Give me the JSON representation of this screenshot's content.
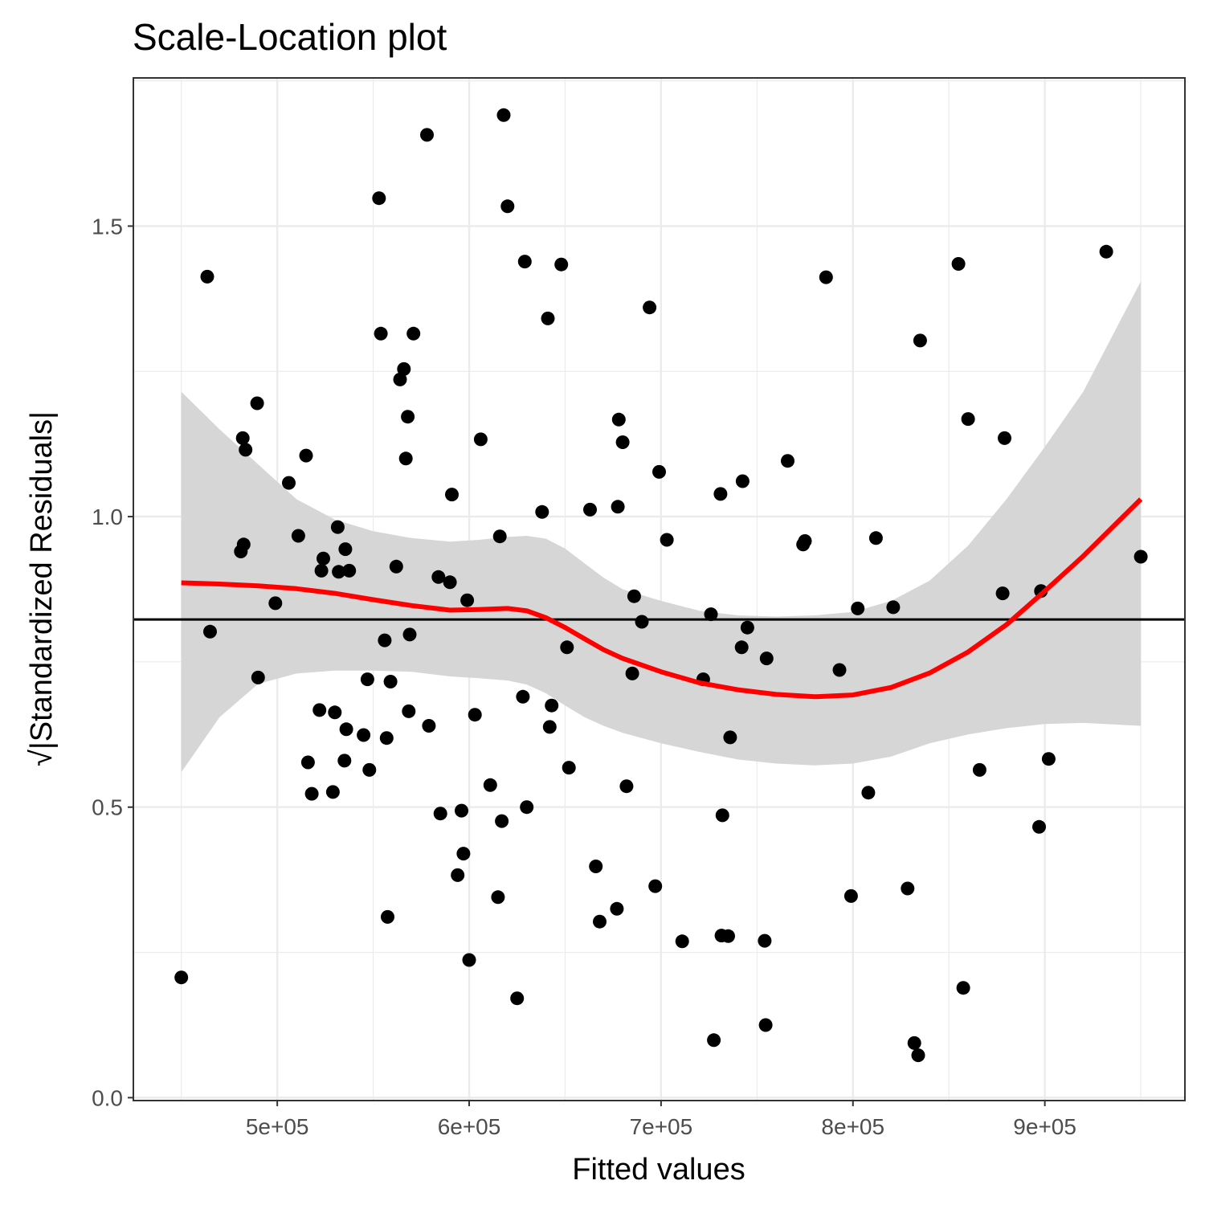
{
  "chart_data": {
    "type": "scatter",
    "title": "Scale-Location plot",
    "xlabel": "Fitted values",
    "ylabel": "√|Standardized Residuals|",
    "xlim": [
      425000,
      973000
    ],
    "ylim": [
      -0.005,
      1.755
    ],
    "x_ticks": [
      500000,
      600000,
      700000,
      800000,
      900000
    ],
    "x_tick_labels": [
      "5e+05",
      "6e+05",
      "7e+05",
      "8e+05",
      "9e+05"
    ],
    "y_ticks": [
      0.0,
      0.5,
      1.0,
      1.5
    ],
    "y_tick_labels": [
      "0.0",
      "0.5",
      "1.0",
      "1.5"
    ],
    "grid": true,
    "reference_line_y": 0.823,
    "colors": {
      "points": "#000000",
      "smooth": "#ff0000",
      "band": "#d6d6d6",
      "reference": "#000000"
    },
    "points": [
      [
        450000,
        0.207
      ],
      [
        463500,
        1.413
      ],
      [
        465000,
        0.802
      ],
      [
        481000,
        0.94
      ],
      [
        482000,
        1.135
      ],
      [
        482500,
        0.952
      ],
      [
        483500,
        1.115
      ],
      [
        489500,
        1.195
      ],
      [
        490000,
        0.723
      ],
      [
        499000,
        0.851
      ],
      [
        506000,
        1.058
      ],
      [
        511000,
        0.967
      ],
      [
        515000,
        1.105
      ],
      [
        516000,
        0.577
      ],
      [
        518000,
        0.523
      ],
      [
        522000,
        0.667
      ],
      [
        523000,
        0.907
      ],
      [
        524000,
        0.928
      ],
      [
        529000,
        0.526
      ],
      [
        530000,
        0.663
      ],
      [
        531500,
        0.982
      ],
      [
        532000,
        0.905
      ],
      [
        535000,
        0.58
      ],
      [
        535500,
        0.944
      ],
      [
        536000,
        0.634
      ],
      [
        537500,
        0.907
      ],
      [
        545000,
        0.624
      ],
      [
        547000,
        0.72
      ],
      [
        548000,
        0.564
      ],
      [
        553000,
        1.548
      ],
      [
        554000,
        1.315
      ],
      [
        556000,
        0.787
      ],
      [
        557000,
        0.619
      ],
      [
        557500,
        0.311
      ],
      [
        559000,
        0.716
      ],
      [
        562000,
        0.914
      ],
      [
        564000,
        1.236
      ],
      [
        566000,
        1.254
      ],
      [
        567000,
        1.1
      ],
      [
        568000,
        1.172
      ],
      [
        568500,
        0.665
      ],
      [
        569000,
        0.797
      ],
      [
        571000,
        1.315
      ],
      [
        578000,
        1.657
      ],
      [
        579000,
        0.64
      ],
      [
        584000,
        0.896
      ],
      [
        585000,
        0.489
      ],
      [
        590000,
        0.887
      ],
      [
        591000,
        1.038
      ],
      [
        594000,
        0.383
      ],
      [
        596000,
        0.494
      ],
      [
        597000,
        0.42
      ],
      [
        599000,
        0.856
      ],
      [
        600000,
        0.237
      ],
      [
        603000,
        0.659
      ],
      [
        606000,
        1.133
      ],
      [
        611000,
        0.538
      ],
      [
        615000,
        0.345
      ],
      [
        616000,
        0.966
      ],
      [
        617000,
        0.476
      ],
      [
        618000,
        1.691
      ],
      [
        620000,
        1.534
      ],
      [
        625000,
        0.171
      ],
      [
        628000,
        0.69
      ],
      [
        629000,
        1.439
      ],
      [
        630000,
        0.5
      ],
      [
        638000,
        1.008
      ],
      [
        641000,
        1.341
      ],
      [
        642000,
        0.638
      ],
      [
        643000,
        0.675
      ],
      [
        648000,
        1.434
      ],
      [
        651000,
        0.775
      ],
      [
        652000,
        0.568
      ],
      [
        663000,
        1.012
      ],
      [
        666000,
        0.398
      ],
      [
        668000,
        0.303
      ],
      [
        677000,
        0.325
      ],
      [
        677500,
        1.017
      ],
      [
        678000,
        1.167
      ],
      [
        680000,
        1.128
      ],
      [
        682000,
        0.536
      ],
      [
        685000,
        0.73
      ],
      [
        686000,
        0.863
      ],
      [
        690000,
        0.819
      ],
      [
        694000,
        1.36
      ],
      [
        697000,
        0.364
      ],
      [
        699000,
        1.077
      ],
      [
        703000,
        0.96
      ],
      [
        711000,
        0.269
      ],
      [
        722000,
        0.72
      ],
      [
        726000,
        0.832
      ],
      [
        727500,
        0.099
      ],
      [
        731000,
        1.039
      ],
      [
        731500,
        0.279
      ],
      [
        732000,
        0.486
      ],
      [
        735000,
        0.278
      ],
      [
        736000,
        0.62
      ],
      [
        742000,
        0.775
      ],
      [
        742500,
        1.061
      ],
      [
        745000,
        0.809
      ],
      [
        754000,
        0.27
      ],
      [
        754500,
        0.125
      ],
      [
        755000,
        0.756
      ],
      [
        766000,
        1.096
      ],
      [
        774000,
        0.952
      ],
      [
        775000,
        0.958
      ],
      [
        786000,
        1.412
      ],
      [
        793000,
        0.736
      ],
      [
        799000,
        0.347
      ],
      [
        802500,
        0.842
      ],
      [
        808000,
        0.525
      ],
      [
        812000,
        0.963
      ],
      [
        821000,
        0.844
      ],
      [
        828500,
        0.36
      ],
      [
        832000,
        0.094
      ],
      [
        834000,
        0.073
      ],
      [
        835000,
        1.303
      ],
      [
        855000,
        1.435
      ],
      [
        857500,
        0.189
      ],
      [
        860000,
        1.168
      ],
      [
        866000,
        0.564
      ],
      [
        878000,
        0.868
      ],
      [
        879000,
        1.135
      ],
      [
        897000,
        0.466
      ],
      [
        898000,
        0.872
      ],
      [
        902000,
        0.583
      ],
      [
        932000,
        1.456
      ],
      [
        950000,
        0.931
      ]
    ],
    "smooth": {
      "x": [
        450000,
        470000,
        490000,
        510000,
        530000,
        550000,
        570000,
        590000,
        605000,
        620000,
        630000,
        640000,
        650000,
        660000,
        670000,
        680000,
        700000,
        720000,
        740000,
        760000,
        780000,
        800000,
        820000,
        840000,
        860000,
        880000,
        900000,
        920000,
        950000
      ],
      "y": [
        0.886,
        0.884,
        0.881,
        0.876,
        0.868,
        0.857,
        0.847,
        0.839,
        0.84,
        0.842,
        0.838,
        0.826,
        0.809,
        0.79,
        0.771,
        0.756,
        0.733,
        0.714,
        0.702,
        0.694,
        0.69,
        0.693,
        0.706,
        0.731,
        0.767,
        0.814,
        0.872,
        0.932,
        1.03
      ]
    },
    "band": {
      "upper": [
        1.215,
        1.15,
        1.09,
        1.03,
        0.995,
        0.975,
        0.963,
        0.957,
        0.96,
        0.965,
        0.967,
        0.962,
        0.945,
        0.92,
        0.895,
        0.875,
        0.855,
        0.838,
        0.83,
        0.828,
        0.83,
        0.836,
        0.855,
        0.89,
        0.95,
        1.03,
        1.12,
        1.215,
        1.405
      ],
      "lower": [
        0.56,
        0.655,
        0.712,
        0.73,
        0.735,
        0.735,
        0.733,
        0.725,
        0.722,
        0.718,
        0.711,
        0.696,
        0.675,
        0.655,
        0.64,
        0.628,
        0.61,
        0.595,
        0.582,
        0.575,
        0.572,
        0.575,
        0.587,
        0.61,
        0.625,
        0.636,
        0.643,
        0.645,
        0.64
      ]
    }
  }
}
